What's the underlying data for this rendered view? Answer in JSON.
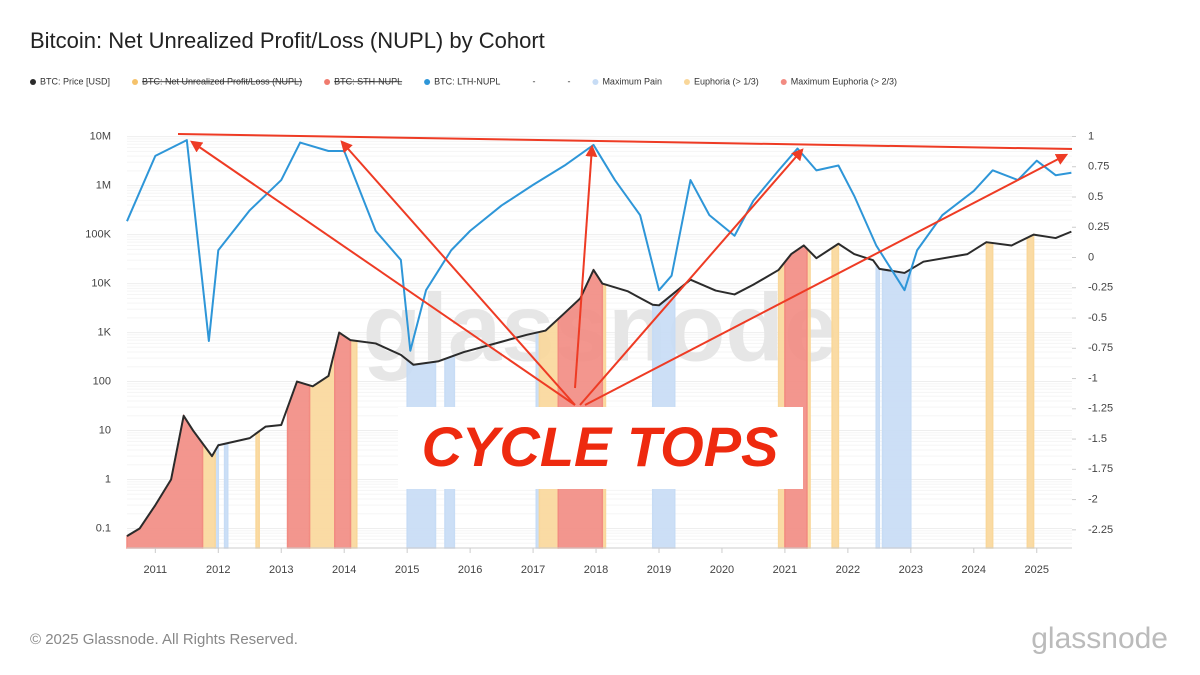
{
  "chart_data": {
    "type": "line",
    "title": "Bitcoin: Net Unrealized Profit/Loss (NUPL) by Cohort",
    "legend": [
      {
        "name": "BTC: Price [USD]",
        "color": "#2b2b2b",
        "hidden": false
      },
      {
        "name": "BTC: Net Unrealized Profit/Loss (NUPL)",
        "color": "#f5c26b",
        "hidden": true
      },
      {
        "name": "BTC: STH-NUPL",
        "color": "#f07b6e",
        "hidden": true
      },
      {
        "name": "BTC: LTH-NUPL",
        "color": "#2e96d8",
        "hidden": false
      },
      {
        "name": "-",
        "hidden": false
      },
      {
        "name": "-",
        "hidden": false
      },
      {
        "name": "Maximum Pain",
        "color": "#c7dcf5",
        "hidden": false
      },
      {
        "name": "Euphoria (> 1/3)",
        "color": "#f9d79a",
        "hidden": false
      },
      {
        "name": "Maximum Euphoria (> 2/3)",
        "color": "#f28b82",
        "hidden": false
      }
    ],
    "xlim": [
      2010.55,
      2025.56
    ],
    "xticks": [
      2011,
      2012,
      2013,
      2014,
      2015,
      2016,
      2017,
      2018,
      2019,
      2020,
      2021,
      2022,
      2023,
      2024,
      2025
    ],
    "ylim": [
      0.04,
      15000000
    ],
    "yscale": "log",
    "yticks": [
      {
        "value": 10000000,
        "label": "10M"
      },
      {
        "value": 1000000,
        "label": "1M"
      },
      {
        "value": 100000,
        "label": "100K"
      },
      {
        "value": 10000,
        "label": "10K"
      },
      {
        "value": 1000,
        "label": "1K"
      },
      100,
      10,
      1,
      0.1
    ],
    "y2lim": [
      -2.4,
      1.07
    ],
    "y2ticks": [
      1,
      0.75,
      0.5,
      0.25,
      0,
      -0.25,
      -0.5,
      -0.75,
      -1,
      -1.25,
      -1.5,
      -1.75,
      -2,
      -2.25
    ],
    "series": [
      {
        "name": "BTC: Price [USD]",
        "color": "#2b2b2b",
        "x": [
          2010.55,
          2010.75,
          2011.0,
          2011.25,
          2011.45,
          2011.6,
          2011.9,
          2012.0,
          2012.5,
          2012.75,
          2013.0,
          2013.25,
          2013.5,
          2013.75,
          2013.92,
          2014.1,
          2014.5,
          2014.9,
          2015.1,
          2015.5,
          2015.9,
          2016.5,
          2016.9,
          2017.2,
          2017.5,
          2017.75,
          2017.96,
          2018.1,
          2018.5,
          2018.9,
          2019.0,
          2019.5,
          2019.9,
          2020.2,
          2020.5,
          2020.9,
          2021.1,
          2021.3,
          2021.5,
          2021.85,
          2022.1,
          2022.4,
          2022.5,
          2022.9,
          2023.2,
          2023.9,
          2024.2,
          2024.6,
          2024.95,
          2025.3,
          2025.55
        ],
        "values": [
          0.07,
          0.1,
          0.3,
          1,
          20,
          10,
          3,
          5,
          7,
          12,
          13,
          100,
          80,
          130,
          1000,
          700,
          600,
          350,
          220,
          260,
          400,
          650,
          900,
          1100,
          2500,
          5000,
          19000,
          10000,
          7000,
          3700,
          3600,
          12000,
          7200,
          6000,
          9500,
          19000,
          40000,
          60000,
          33000,
          65000,
          40000,
          30000,
          20000,
          16500,
          28000,
          40000,
          70000,
          60000,
          100000,
          85000,
          115000
        ]
      },
      {
        "name": "BTC: LTH-NUPL",
        "color": "#2e96d8",
        "axis": "y2",
        "x": [
          2010.55,
          2011.0,
          2011.5,
          2011.85,
          2012.0,
          2012.5,
          2013.0,
          2013.3,
          2013.75,
          2014.0,
          2014.5,
          2014.9,
          2015.05,
          2015.3,
          2015.7,
          2016.0,
          2016.5,
          2017.0,
          2017.5,
          2017.96,
          2018.3,
          2018.7,
          2019.0,
          2019.2,
          2019.5,
          2019.8,
          2020.2,
          2020.5,
          2020.9,
          2021.2,
          2021.5,
          2021.85,
          2022.1,
          2022.45,
          2022.9,
          2023.1,
          2023.5,
          2024.0,
          2024.3,
          2024.7,
          2025.0,
          2025.3,
          2025.55
        ],
        "values": [
          0.3,
          0.84,
          0.97,
          -0.69,
          0.06,
          0.39,
          0.64,
          0.95,
          0.88,
          0.88,
          0.22,
          -0.02,
          -0.77,
          -0.27,
          0.06,
          0.22,
          0.43,
          0.6,
          0.76,
          0.93,
          0.64,
          0.35,
          -0.27,
          -0.15,
          0.64,
          0.35,
          0.18,
          0.47,
          0.72,
          0.9,
          0.72,
          0.76,
          0.51,
          0.1,
          -0.27,
          0.06,
          0.35,
          0.55,
          0.72,
          0.64,
          0.8,
          0.68,
          0.7
        ]
      }
    ],
    "bands": [
      {
        "name": "Maximum Pain",
        "color": "#c7dcf5",
        "ranges": [
          [
            2011.95,
            2012.0
          ],
          [
            2012.1,
            2012.15
          ],
          [
            2015.0,
            2015.45
          ],
          [
            2015.6,
            2015.75
          ],
          [
            2017.05,
            2017.1
          ],
          [
            2018.9,
            2019.25
          ],
          [
            2022.45,
            2022.5
          ],
          [
            2022.55,
            2023.0
          ]
        ]
      },
      {
        "name": "Euphoria (> 1/3)",
        "color": "#f9d79a",
        "ranges": [
          [
            2011.75,
            2011.95
          ],
          [
            2012.6,
            2012.65
          ],
          [
            2013.45,
            2013.85
          ],
          [
            2014.1,
            2014.2
          ],
          [
            2017.1,
            2017.4
          ],
          [
            2018.1,
            2018.15
          ],
          [
            2020.9,
            2021.0
          ],
          [
            2021.35,
            2021.4
          ],
          [
            2021.75,
            2021.85
          ],
          [
            2024.2,
            2024.3
          ],
          [
            2024.85,
            2024.95
          ]
        ]
      },
      {
        "name": "Maximum Euphoria (> 2/3)",
        "color": "#f28b82",
        "ranges": [
          [
            2010.55,
            2011.75
          ],
          [
            2013.1,
            2013.45
          ],
          [
            2013.85,
            2014.1
          ],
          [
            2017.4,
            2018.1
          ],
          [
            2021.0,
            2021.35
          ]
        ]
      }
    ],
    "annotation": "CYCLE TOPS",
    "watermark": "glassnode",
    "grid": true
  },
  "footer": {
    "copyright": "© 2025 Glassnode. All Rights Reserved.",
    "logo": "glassnode"
  }
}
